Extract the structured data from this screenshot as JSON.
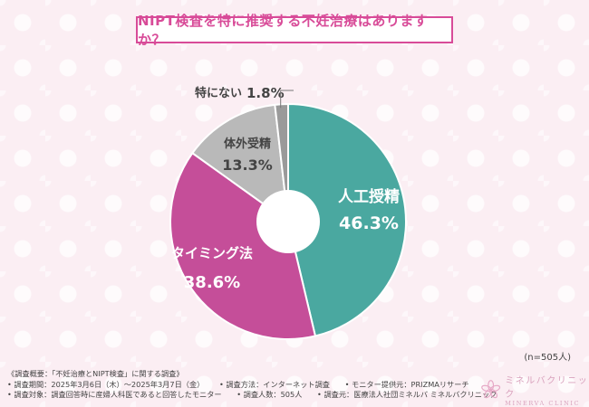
{
  "title": "NIPT検査を特に推奨する不妊治療はありますか？",
  "sample_size": "(n=505人)",
  "notes": [
    "《調査概要：「不妊治療とNIPT検査」に関する調査》",
    "• 調査期間：2025年3月6日（木）～2025年3月7日（金）",
    "• 調査方法：インターネット調査",
    "• モニター提供元：PRIZMAリサーチ",
    "• 調査対象：調査回答時に産婦人科医であると回答したモニター",
    "• 調査人数：505人",
    "• 調査元：医療法人社団ミネルバ ミネルバクリニック"
  ],
  "brand": {
    "name_jp": "ミネルバクリニック",
    "name_en": "MINERVA CLINIC",
    "logo_icon": "pink-flower-logo-icon"
  },
  "chart_data": {
    "type": "pie",
    "style": "donut",
    "title": "NIPT検査を特に推奨する不妊治療はありますか？",
    "start": "12 o'clock, clockwise",
    "slices": [
      {
        "label": "人工授精",
        "value": 46.3,
        "display": "46.3%",
        "color": "#4aa8a0"
      },
      {
        "label": "タイミング法",
        "value": 38.6,
        "display": "38.6%",
        "color": "#c54e99"
      },
      {
        "label": "体外受精",
        "value": 13.3,
        "display": "13.3%",
        "color": "#b9b9b9"
      },
      {
        "label": "特にない",
        "value": 1.8,
        "display": "1.8%",
        "color": "#9a9a9a"
      }
    ]
  }
}
